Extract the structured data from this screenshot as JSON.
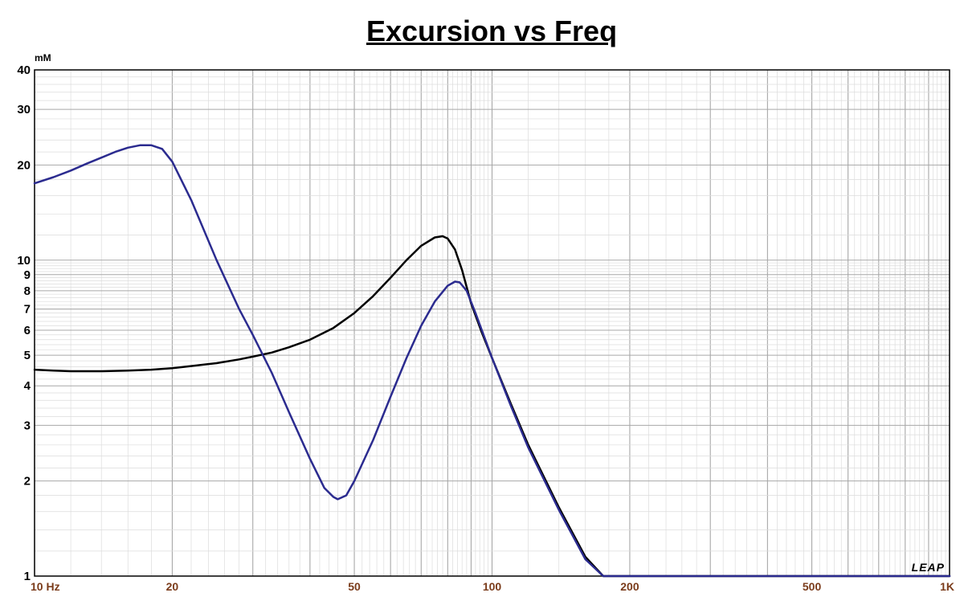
{
  "chart_data": {
    "type": "line",
    "title": "Excursion vs Freq",
    "y_unit": "mM",
    "x_scale": "log",
    "y_scale": "log",
    "xlim": [
      10,
      1000
    ],
    "ylim": [
      1,
      40
    ],
    "grid": true,
    "x_tick_labels": [
      {
        "value": 10,
        "label": "10  Hz"
      },
      {
        "value": 20,
        "label": "20"
      },
      {
        "value": 50,
        "label": "50"
      },
      {
        "value": 100,
        "label": "100"
      },
      {
        "value": 200,
        "label": "200"
      },
      {
        "value": 500,
        "label": "500"
      },
      {
        "value": 1000,
        "label": "1K"
      }
    ],
    "y_tick_labels": [
      {
        "value": 1,
        "label": "1"
      },
      {
        "value": 2,
        "label": "2"
      },
      {
        "value": 3,
        "label": "3"
      },
      {
        "value": 4,
        "label": "4"
      },
      {
        "value": 5,
        "label": "5"
      },
      {
        "value": 6,
        "label": "6"
      },
      {
        "value": 7,
        "label": "7"
      },
      {
        "value": 8,
        "label": "8"
      },
      {
        "value": 9,
        "label": "9"
      },
      {
        "value": 10,
        "label": "10"
      },
      {
        "value": 20,
        "label": "20"
      },
      {
        "value": 30,
        "label": "30"
      },
      {
        "value": 40,
        "label": "40"
      }
    ],
    "series": [
      {
        "color": "#000000",
        "x": [
          10,
          11,
          12,
          14,
          16,
          18,
          20,
          22,
          25,
          28,
          30,
          33,
          36,
          40,
          45,
          50,
          55,
          60,
          65,
          70,
          75,
          78,
          80,
          83,
          86,
          90,
          95,
          100,
          110,
          120,
          140,
          160,
          175,
          180,
          200,
          300,
          500,
          1000
        ],
        "y": [
          4.5,
          4.47,
          4.45,
          4.45,
          4.47,
          4.5,
          4.55,
          4.62,
          4.72,
          4.85,
          4.95,
          5.1,
          5.3,
          5.6,
          6.1,
          6.8,
          7.7,
          8.8,
          10.0,
          11.1,
          11.8,
          11.9,
          11.7,
          10.8,
          9.3,
          7.3,
          5.9,
          4.9,
          3.5,
          2.6,
          1.65,
          1.15,
          1.0,
          1.0,
          1.0,
          1.0,
          1.0,
          1.0
        ]
      },
      {
        "color": "#2b2b8f",
        "x": [
          10,
          11,
          12,
          13,
          14,
          15,
          16,
          17,
          18,
          19,
          20,
          22,
          25,
          28,
          30,
          33,
          36,
          40,
          43,
          45,
          46,
          48,
          50,
          55,
          60,
          65,
          70,
          75,
          80,
          83,
          85,
          88,
          92,
          100,
          110,
          120,
          140,
          160,
          175,
          180,
          200,
          300,
          500,
          1000
        ],
        "y": [
          17.5,
          18.3,
          19.2,
          20.2,
          21.1,
          22.0,
          22.7,
          23.1,
          23.1,
          22.5,
          20.5,
          15.5,
          10.0,
          7.0,
          5.8,
          4.4,
          3.3,
          2.35,
          1.9,
          1.78,
          1.75,
          1.8,
          2.0,
          2.7,
          3.7,
          4.9,
          6.2,
          7.4,
          8.3,
          8.55,
          8.5,
          8.0,
          6.8,
          4.9,
          3.45,
          2.55,
          1.62,
          1.13,
          1.0,
          1.0,
          1.0,
          1.0,
          1.0,
          1.0
        ]
      }
    ]
  },
  "watermark": "LEAP"
}
